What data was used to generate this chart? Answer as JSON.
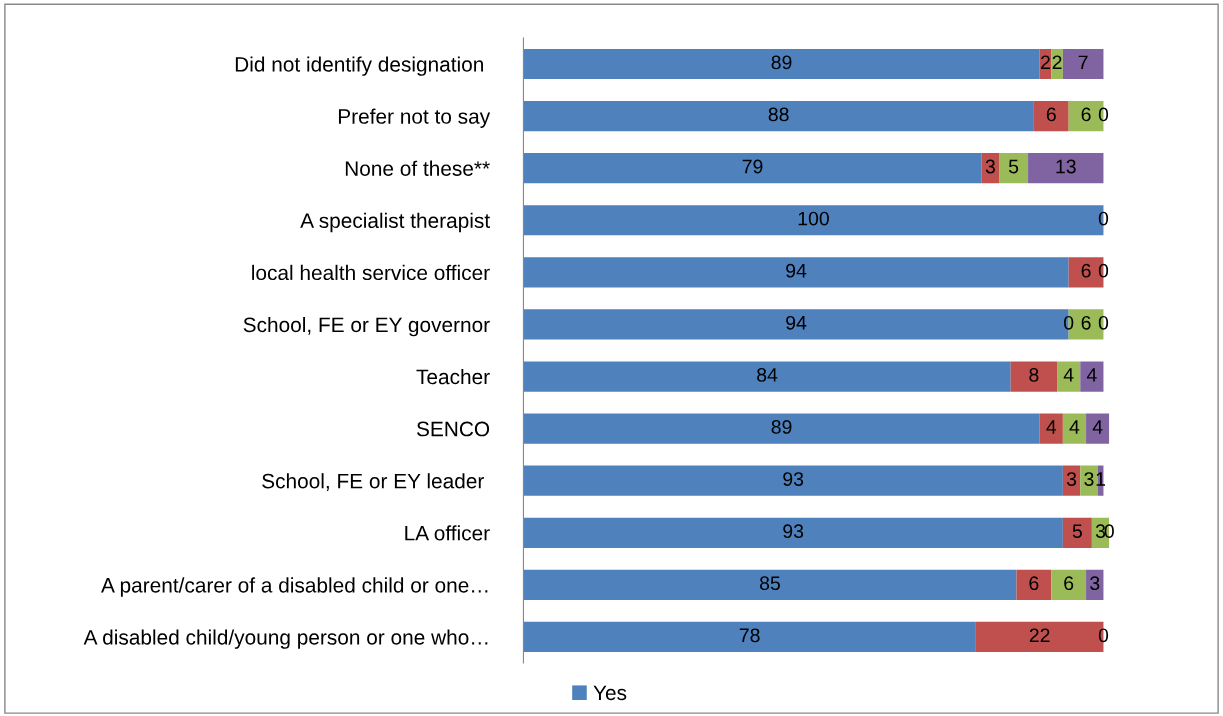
{
  "chart_data": {
    "type": "bar",
    "orientation": "horizontal",
    "stacked": true,
    "categories": [
      "Did not identify designation ",
      "Prefer not to say",
      "None of these**",
      "A specialist therapist",
      "local health service officer",
      "School, FE or EY governor",
      "Teacher",
      "SENCO",
      "School, FE or EY leader ",
      "LA officer",
      "A parent/carer of a disabled child or one…",
      "A disabled child/young person or one who…"
    ],
    "series": [
      {
        "name": "Yes",
        "color": "#4f81bd",
        "values": [
          89,
          88,
          79,
          100,
          94,
          94,
          84,
          89,
          93,
          93,
          85,
          78
        ],
        "value_labels": [
          "89",
          "88",
          "79",
          "100",
          "94",
          "94",
          "84",
          "89",
          "93",
          "93",
          "85",
          "78"
        ]
      },
      {
        "color": "#c0504d",
        "values": [
          2,
          6,
          3,
          0,
          6,
          0,
          8,
          4,
          3,
          5,
          6,
          22
        ],
        "value_labels": [
          "2",
          "6",
          "3",
          null,
          "6",
          "0",
          "8",
          "4",
          "3",
          "5",
          "6",
          "22"
        ]
      },
      {
        "color": "#9bbb59",
        "values": [
          2,
          6,
          5,
          0,
          0,
          6,
          4,
          4,
          3,
          3,
          6,
          0
        ],
        "value_labels": [
          "2",
          "6",
          "5",
          null,
          null,
          "6",
          "4",
          "4",
          "3",
          "3",
          "6",
          null
        ]
      },
      {
        "color": "#8064a2",
        "values": [
          7,
          0,
          13,
          0,
          0,
          0,
          4,
          4,
          1,
          0,
          3,
          0
        ],
        "value_labels": [
          "7",
          "0",
          "13",
          "0",
          "0",
          "0",
          "4",
          "4",
          "1",
          "0",
          "3",
          "0"
        ]
      }
    ],
    "xlim": [
      0,
      101
    ],
    "tick_labels": "y",
    "grid": false,
    "legend": "bottom"
  }
}
